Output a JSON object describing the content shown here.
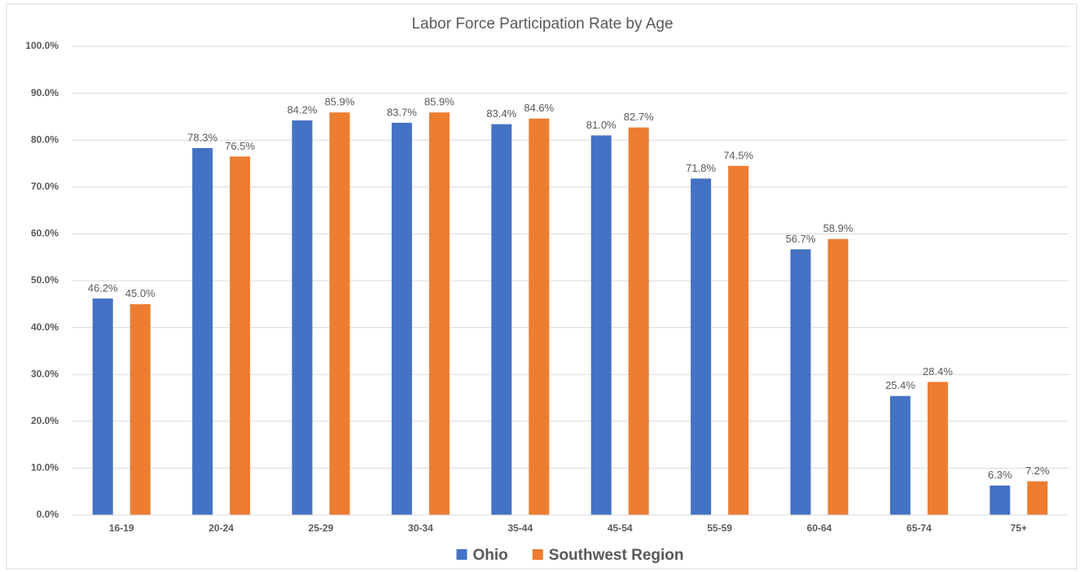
{
  "chart_data": {
    "type": "bar",
    "title": "Labor Force Participation Rate by Age",
    "categories": [
      "16-19",
      "20-24",
      "25-29",
      "30-34",
      "35-44",
      "45-54",
      "55-59",
      "60-64",
      "65-74",
      "75+"
    ],
    "series": [
      {
        "name": "Ohio",
        "color": "#4472c4",
        "values": [
          46.2,
          78.3,
          84.2,
          83.7,
          83.4,
          81.0,
          71.8,
          56.7,
          25.4,
          6.3
        ],
        "value_labels": [
          "46.2%",
          "78.3%",
          "84.2%",
          "83.7%",
          "83.4%",
          "81.0%",
          "71.8%",
          "56.7%",
          "25.4%",
          "6.3%"
        ]
      },
      {
        "name": "Southwest Region",
        "color": "#ed7d31",
        "values": [
          45.0,
          76.5,
          85.9,
          85.9,
          84.6,
          82.7,
          74.5,
          58.9,
          28.4,
          7.2
        ],
        "value_labels": [
          "45.0%",
          "76.5%",
          "85.9%",
          "85.9%",
          "84.6%",
          "82.7%",
          "74.5%",
          "58.9%",
          "28.4%",
          "7.2%"
        ]
      }
    ],
    "ylim": [
      0,
      100
    ],
    "yticks": [
      {
        "value": 0,
        "label": "0.0%"
      },
      {
        "value": 10,
        "label": "10.0%"
      },
      {
        "value": 20,
        "label": "20.0%"
      },
      {
        "value": 30,
        "label": "30.0%"
      },
      {
        "value": 40,
        "label": "40.0%"
      },
      {
        "value": 50,
        "label": "50.0%"
      },
      {
        "value": 60,
        "label": "60.0%"
      },
      {
        "value": 70,
        "label": "70.0%"
      },
      {
        "value": 80,
        "label": "80.0%"
      },
      {
        "value": 90,
        "label": "90.0%"
      },
      {
        "value": 100,
        "label": "100.0%"
      }
    ],
    "grid": true,
    "legend": "bottom"
  }
}
